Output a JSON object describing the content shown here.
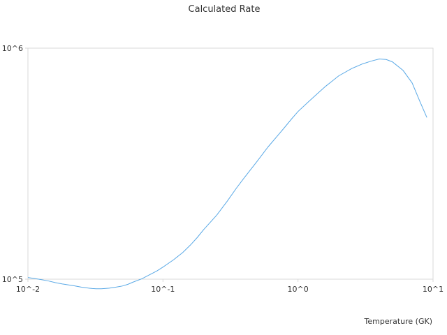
{
  "chart_data": {
    "type": "line",
    "title": "Calculated Rate",
    "xlabel": "Temperature (GK)",
    "ylabel": "",
    "x_scale": "log",
    "y_scale": "log",
    "xlim": [
      0.01,
      10
    ],
    "ylim": [
      100000,
      1000000
    ],
    "x_ticks": [
      {
        "value": 0.01,
        "label": "10^-2"
      },
      {
        "value": 0.1,
        "label": "10^-1"
      },
      {
        "value": 1,
        "label": "10^0"
      },
      {
        "value": 10,
        "label": "10^1"
      }
    ],
    "y_ticks": [
      {
        "value": 100000,
        "label": "10^5"
      },
      {
        "value": 1000000,
        "label": "10^6"
      }
    ],
    "grid": false,
    "legend": "none",
    "line_color": "#5aa9e6",
    "frame_color": "#d9d9d9",
    "series": [
      {
        "x": [
          0.01,
          0.012,
          0.014,
          0.016,
          0.018,
          0.02,
          0.022,
          0.025,
          0.028,
          0.03,
          0.032,
          0.035,
          0.04,
          0.045,
          0.05,
          0.055,
          0.06,
          0.07,
          0.08,
          0.09,
          0.1,
          0.12,
          0.14,
          0.16,
          0.18,
          0.2,
          0.25,
          0.3,
          0.35,
          0.4,
          0.5,
          0.6,
          0.7,
          0.8,
          0.9,
          1.0,
          1.2,
          1.4,
          1.6,
          1.8,
          2.0,
          2.5,
          3.0,
          3.5,
          4.0,
          4.5,
          5.0,
          6.0,
          7.0,
          8.0,
          9.0
        ],
        "y": [
          101700,
          100000,
          98400,
          96600,
          95300,
          94400,
          93600,
          92300,
          91500,
          91100,
          90900,
          90900,
          91400,
          92400,
          93400,
          95000,
          97100,
          100500,
          104700,
          108500,
          112800,
          121400,
          130400,
          140700,
          151800,
          163800,
          189200,
          218000,
          247900,
          274800,
          324800,
          373700,
          415400,
          455600,
          495300,
          531700,
          587300,
          637300,
          683600,
          721800,
          758500,
          816400,
          854500,
          879700,
          897900,
          893200,
          872400,
          801000,
          707300,
          587300,
          501200
        ]
      }
    ]
  }
}
